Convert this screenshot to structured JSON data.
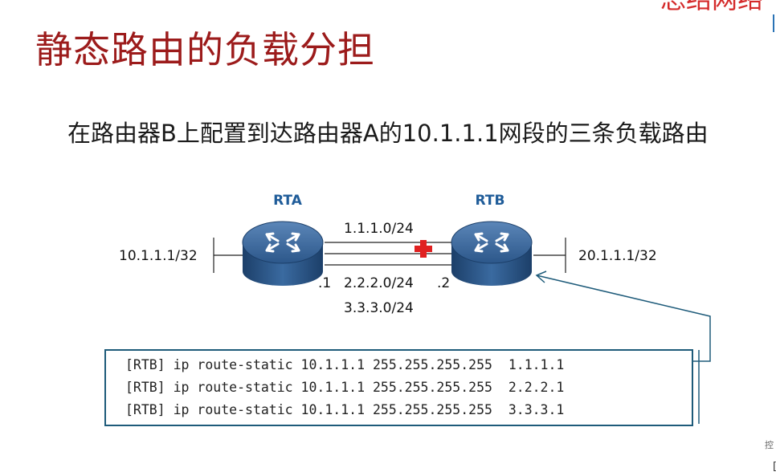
{
  "slide": {
    "title": "静态路由的负载分担",
    "corner_text": "总结网络",
    "description": "在路由器B上配置到达路由器A的10.1.1.1网段的三条负载路由"
  },
  "diagram": {
    "router_a": {
      "label": "RTA",
      "icon": "router-icon"
    },
    "router_b": {
      "label": "RTB",
      "icon": "router-icon"
    },
    "left_network": "10.1.1.1/32",
    "right_network": "20.1.1.1/32",
    "links": [
      "1.1.1.0/24",
      "2.2.2.0/24",
      "3.3.3.0/24"
    ],
    "rta_interface": ".1",
    "rtb_interface": ".2",
    "load_balance_marker": "red-cross-icon",
    "colors": {
      "router": "#2f5f93",
      "link": "#1a1a1a",
      "callout": "#1e5b7a",
      "title": "#9c1b1b",
      "marker": "#e02020"
    }
  },
  "config": {
    "lines": [
      "[RTB] ip route-static 10.1.1.1 255.255.255.255  1.1.1.1",
      "[RTB] ip route-static 10.1.1.1 255.255.255.255  2.2.2.1",
      "[RTB] ip route-static 10.1.1.1 255.255.255.255  3.3.3.1"
    ]
  },
  "side_fragments": {
    "top": "控",
    "bottom": "["
  }
}
